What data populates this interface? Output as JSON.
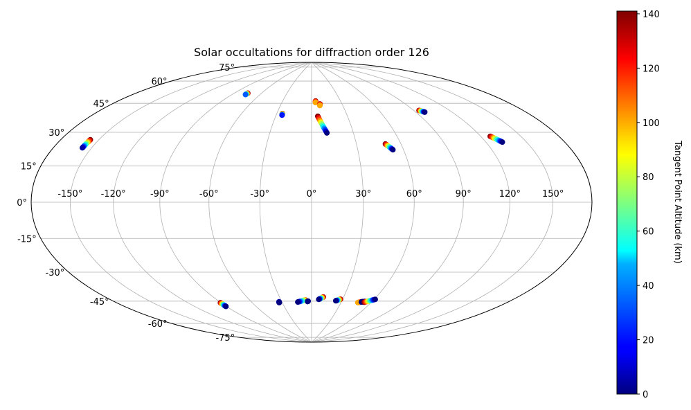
{
  "chart_data": {
    "type": "scatter",
    "projection": "aitoff-hammer",
    "title": "Solar occultations for diffraction order 126",
    "xlabel": "",
    "ylabel": "",
    "grid": true,
    "xlim": [
      -180,
      180
    ],
    "ylim": [
      -90,
      90
    ],
    "x_ticks": [
      -150,
      -120,
      -90,
      -60,
      -30,
      0,
      30,
      60,
      90,
      120,
      150
    ],
    "y_ticks": [
      -75,
      -60,
      -45,
      -30,
      -15,
      0,
      15,
      30,
      45,
      60,
      75
    ],
    "x_tick_labels": [
      "-150°",
      "-120°",
      "-90°",
      "-60°",
      "-30°",
      "0°",
      "30°",
      "60°",
      "90°",
      "120°",
      "150°"
    ],
    "y_tick_labels": [
      "-75°",
      "-60°",
      "-45°",
      "-30°",
      "-15°",
      "0°",
      "15°",
      "30°",
      "45°",
      "60°",
      "75°"
    ],
    "colorbar": {
      "label": "Tangent Point Altitude (km)",
      "colormap": "jet",
      "range": [
        0,
        141
      ],
      "ticks": [
        0,
        20,
        40,
        60,
        80,
        100,
        120,
        140
      ],
      "tick_labels": [
        "0",
        "20",
        "40",
        "60",
        "80",
        "100",
        "120",
        "140"
      ]
    },
    "tracks": [
      {
        "lon": [
          -157.0,
          -156.5
        ],
        "lat": [
          25.0,
          29.0
        ],
        "alt": [
          5,
          140
        ]
      },
      {
        "lon": [
          -75.8,
          -75.4
        ],
        "lat": [
          63.5,
          64.5
        ],
        "alt": [
          30,
          140
        ]
      },
      {
        "lon": [
          -25.0,
          -25.2
        ],
        "lat": [
          52.0,
          53.0
        ],
        "alt": [
          20,
          140
        ]
      },
      {
        "lon": [
          4.0,
          4.2
        ],
        "lat": [
          60.5,
          61.5
        ],
        "alt": [
          100,
          140
        ]
      },
      {
        "lon": [
          8.0,
          8.3
        ],
        "lat": [
          58.5,
          59.5
        ],
        "alt": [
          100,
          140
        ]
      },
      {
        "lon": [
          11.0,
          5.2
        ],
        "lat": [
          41.0,
          51.5
        ],
        "alt": [
          0,
          140
        ]
      },
      {
        "lon": [
          53.0,
          49.5
        ],
        "lat": [
          30.0,
          33.5
        ],
        "alt": [
          0,
          140
        ]
      },
      {
        "lon": [
          97.5,
          94.5
        ],
        "lat": [
          50.2,
          51.5
        ],
        "alt": [
          0,
          140
        ]
      },
      {
        "lon": [
          132.0,
          127.0
        ],
        "lat": [
          30.0,
          33.5
        ],
        "alt": [
          0,
          140
        ]
      },
      {
        "lon": [
          -90.5,
          -90.5
        ],
        "lat": [
          -60.0,
          -57.5
        ],
        "alt": [
          0,
          140
        ]
      },
      {
        "lon": [
          -33.0,
          -32.8
        ],
        "lat": [
          -60.5,
          -60.0
        ],
        "alt": [
          0,
          10
        ]
      },
      {
        "lon": [
          -14.0,
          -6.0
        ],
        "lat": [
          -60.5,
          -59.2
        ],
        "alt": [
          0,
          110
        ]
      },
      {
        "lon": [
          -4.0,
          -3.5
        ],
        "lat": [
          -60.2,
          -60.0
        ],
        "alt": [
          0,
          5
        ]
      },
      {
        "lon": [
          7.0,
          11.0
        ],
        "lat": [
          -58.8,
          -57.2
        ],
        "alt": [
          0,
          140
        ]
      },
      {
        "lon": [
          24.0,
          28.0
        ],
        "lat": [
          -59.5,
          -58.4
        ],
        "alt": [
          0,
          140
        ]
      },
      {
        "lon": [
          47.0,
          51.0
        ],
        "lat": [
          -60.0,
          -59.2
        ],
        "alt": [
          100,
          140
        ]
      },
      {
        "lon": [
          50.0,
          53.0
        ],
        "lat": [
          -59.5,
          -59.0
        ],
        "alt": [
          0,
          10
        ]
      },
      {
        "lon": [
          53.0,
          61.0
        ],
        "lat": [
          -59.5,
          -57.2
        ],
        "alt": [
          140,
          0
        ]
      }
    ]
  }
}
